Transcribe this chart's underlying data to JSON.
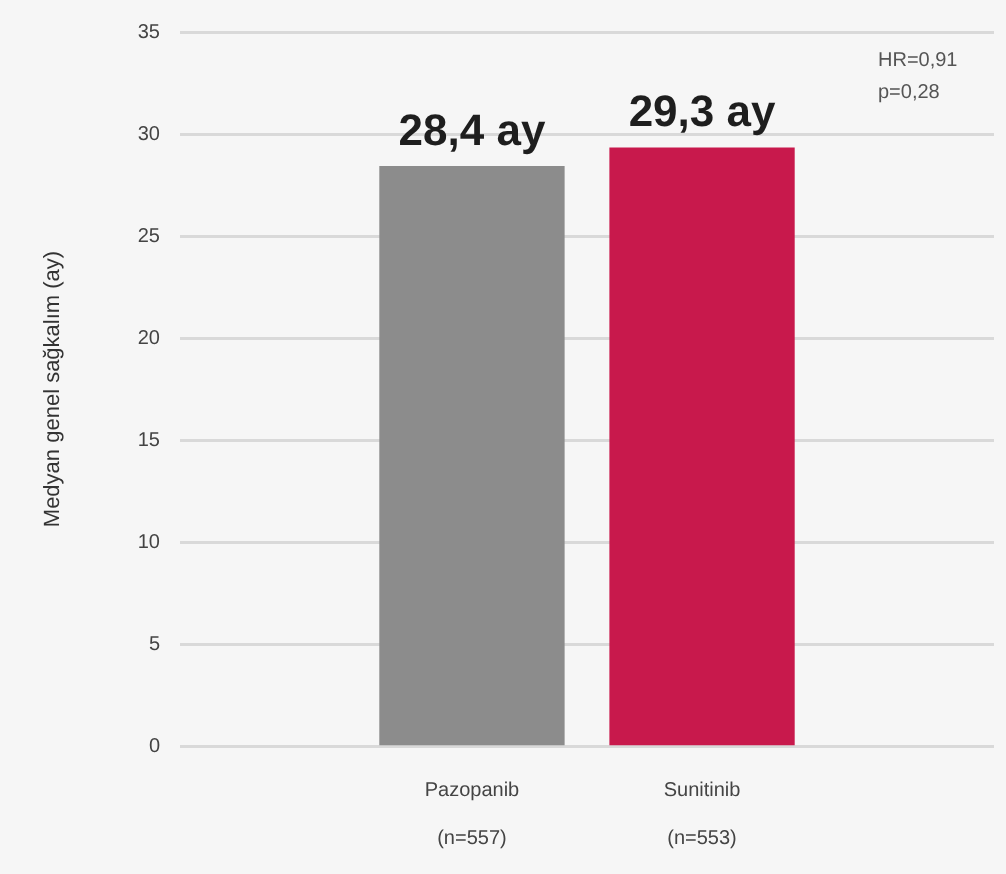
{
  "chart_data": {
    "type": "bar",
    "categories": [
      "Pazopanib\n(n=557)",
      "Sunitinib\n(n=553)"
    ],
    "values": [
      28.4,
      29.3
    ],
    "colors": [
      "#8c8c8c",
      "#c8194c"
    ],
    "value_labels": [
      "28,4 ay",
      "29,3 ay"
    ],
    "ylabel": "Medyan genel sağkalım (ay)",
    "ylim": [
      0,
      35
    ],
    "yticks": [
      0,
      5,
      10,
      15,
      20,
      25,
      30,
      35
    ],
    "grid": "y",
    "annotations": [
      "HR=0,91",
      "p=0,28"
    ]
  }
}
